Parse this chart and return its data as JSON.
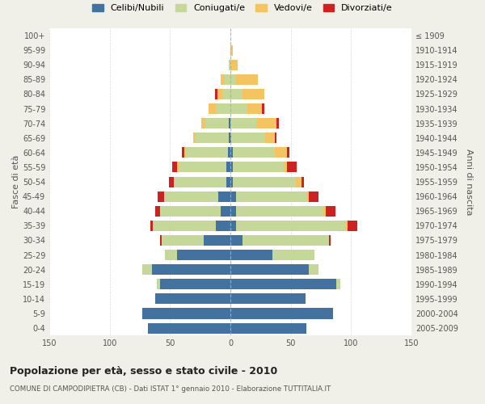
{
  "age_groups": [
    "0-4",
    "5-9",
    "10-14",
    "15-19",
    "20-24",
    "25-29",
    "30-34",
    "35-39",
    "40-44",
    "45-49",
    "50-54",
    "55-59",
    "60-64",
    "65-69",
    "70-74",
    "75-79",
    "80-84",
    "85-89",
    "90-94",
    "95-99",
    "100+"
  ],
  "birth_years": [
    "2005-2009",
    "2000-2004",
    "1995-1999",
    "1990-1994",
    "1985-1989",
    "1980-1984",
    "1975-1979",
    "1970-1974",
    "1965-1969",
    "1960-1964",
    "1955-1959",
    "1950-1954",
    "1945-1949",
    "1940-1944",
    "1935-1939",
    "1930-1934",
    "1925-1929",
    "1920-1924",
    "1915-1919",
    "1910-1914",
    "≤ 1909"
  ],
  "males": {
    "celibi": [
      68,
      73,
      62,
      58,
      65,
      44,
      22,
      12,
      8,
      10,
      3,
      3,
      2,
      1,
      1,
      0,
      0,
      0,
      0,
      0,
      0
    ],
    "coniugati": [
      0,
      0,
      0,
      3,
      8,
      10,
      35,
      52,
      50,
      45,
      43,
      40,
      35,
      28,
      20,
      12,
      7,
      5,
      1,
      0,
      0
    ],
    "vedovi": [
      0,
      0,
      0,
      0,
      0,
      0,
      0,
      0,
      0,
      0,
      1,
      1,
      1,
      2,
      3,
      6,
      4,
      3,
      0,
      0,
      0
    ],
    "divorziati": [
      0,
      0,
      0,
      0,
      0,
      0,
      1,
      2,
      4,
      5,
      4,
      4,
      2,
      0,
      0,
      0,
      2,
      0,
      0,
      0,
      0
    ]
  },
  "females": {
    "nubili": [
      63,
      85,
      62,
      88,
      65,
      35,
      10,
      5,
      5,
      5,
      2,
      2,
      2,
      1,
      0,
      0,
      0,
      0,
      0,
      0,
      0
    ],
    "coniugate": [
      0,
      0,
      0,
      3,
      8,
      35,
      72,
      90,
      72,
      58,
      52,
      42,
      35,
      28,
      22,
      14,
      10,
      5,
      1,
      0,
      0
    ],
    "vedove": [
      0,
      0,
      0,
      0,
      0,
      0,
      0,
      2,
      2,
      2,
      5,
      3,
      10,
      8,
      16,
      12,
      18,
      18,
      5,
      2,
      0
    ],
    "divorziate": [
      0,
      0,
      0,
      0,
      0,
      0,
      1,
      8,
      8,
      8,
      2,
      8,
      2,
      1,
      2,
      2,
      0,
      0,
      0,
      0,
      0
    ]
  },
  "colors": {
    "celibi": "#4472a0",
    "coniugati": "#c5d89a",
    "vedovi": "#f5c462",
    "divorziati": "#cc2222"
  },
  "title": "Popolazione per età, sesso e stato civile - 2010",
  "subtitle": "COMUNE DI CAMPODIPIETRA (CB) - Dati ISTAT 1° gennaio 2010 - Elaborazione TUTTITALIA.IT",
  "ylabel_left": "Fasce di età",
  "ylabel_right": "Anni di nascita",
  "xlim": 150,
  "bg_color": "#f0f0e8",
  "plot_bg": "#ffffff",
  "legend_labels": [
    "Celibi/Nubili",
    "Coniugati/e",
    "Vedovi/e",
    "Divorziati/e"
  ]
}
